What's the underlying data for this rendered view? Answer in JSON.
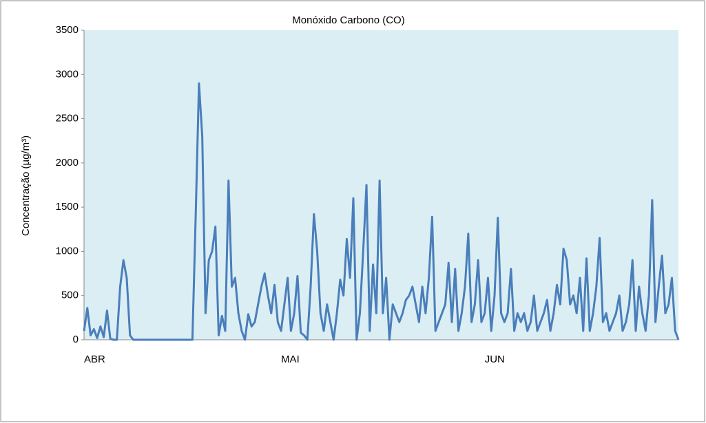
{
  "chart_data": {
    "type": "line",
    "title": "Monóxido Carbono (CO)",
    "y_label": "Concentração (µg/m³)",
    "categories": [
      "ABR",
      null,
      null,
      null,
      null,
      null,
      null,
      null,
      null,
      null,
      null,
      null,
      null,
      null,
      null,
      null,
      null,
      null,
      null,
      null,
      null,
      null,
      null,
      null,
      null,
      null,
      null,
      null,
      null,
      null,
      null,
      null,
      null,
      null,
      null,
      null,
      null,
      null,
      null,
      null,
      null,
      null,
      null,
      null,
      null,
      null,
      null,
      null,
      null,
      null,
      null,
      null,
      null,
      null,
      null,
      null,
      null,
      null,
      null,
      null,
      "MAI",
      null,
      null,
      null,
      null,
      null,
      null,
      null,
      null,
      null,
      null,
      null,
      null,
      null,
      null,
      null,
      null,
      null,
      null,
      null,
      null,
      null,
      null,
      null,
      null,
      null,
      null,
      null,
      null,
      null,
      null,
      null,
      null,
      null,
      null,
      null,
      null,
      null,
      null,
      null,
      null,
      null,
      null,
      null,
      null,
      null,
      null,
      null,
      null,
      null,
      null,
      null,
      null,
      null,
      null,
      null,
      null,
      null,
      null,
      null,
      null,
      null,
      "JUN",
      null,
      null,
      null,
      null,
      null,
      null,
      null,
      null,
      null,
      null,
      null,
      null,
      null,
      null,
      null,
      null,
      null,
      null,
      null,
      null,
      null,
      null,
      null,
      null,
      null,
      null,
      null,
      null,
      null,
      null,
      null,
      null,
      null,
      null,
      null,
      null,
      null,
      null,
      null,
      null,
      null,
      null,
      null,
      null,
      null,
      null,
      null,
      null,
      null,
      null,
      null,
      null,
      null,
      null,
      null,
      null,
      null,
      null,
      null
    ],
    "values": [
      100,
      360,
      50,
      120,
      20,
      150,
      30,
      330,
      10,
      0,
      0,
      600,
      900,
      700,
      50,
      0,
      0,
      0,
      0,
      0,
      0,
      0,
      0,
      0,
      0,
      0,
      0,
      0,
      0,
      0,
      0,
      0,
      0,
      0,
      1400,
      2900,
      2300,
      300,
      900,
      1000,
      1280,
      50,
      270,
      100,
      1800,
      600,
      700,
      300,
      100,
      0,
      290,
      150,
      200,
      400,
      600,
      750,
      500,
      300,
      620,
      200,
      100,
      400,
      700,
      100,
      300,
      720,
      80,
      50,
      0,
      600,
      1420,
      1000,
      300,
      100,
      400,
      200,
      0,
      300,
      680,
      500,
      1140,
      700,
      1600,
      0,
      300,
      1000,
      1750,
      100,
      850,
      300,
      1800,
      300,
      700,
      0,
      400,
      300,
      200,
      300,
      450,
      500,
      600,
      400,
      200,
      600,
      300,
      700,
      1390,
      100,
      200,
      300,
      400,
      870,
      200,
      800,
      100,
      300,
      600,
      1200,
      200,
      400,
      900,
      200,
      300,
      700,
      100,
      500,
      1380,
      300,
      200,
      300,
      800,
      100,
      300,
      200,
      300,
      100,
      200,
      500,
      100,
      200,
      300,
      450,
      100,
      300,
      620,
      400,
      1030,
      900,
      400,
      500,
      300,
      700,
      100,
      920,
      100,
      300,
      600,
      1150,
      200,
      300,
      100,
      200,
      300,
      500,
      100,
      200,
      400,
      900,
      100,
      600,
      300,
      100,
      500,
      1580,
      200,
      600,
      950,
      300,
      400,
      700,
      100,
      0
    ],
    "color": "#4a7ebb",
    "ylim": [
      0,
      3500
    ],
    "yticks": [
      0,
      500,
      1000,
      1500,
      2000,
      2500,
      3000,
      3500
    ],
    "background": "#dbeef3"
  }
}
